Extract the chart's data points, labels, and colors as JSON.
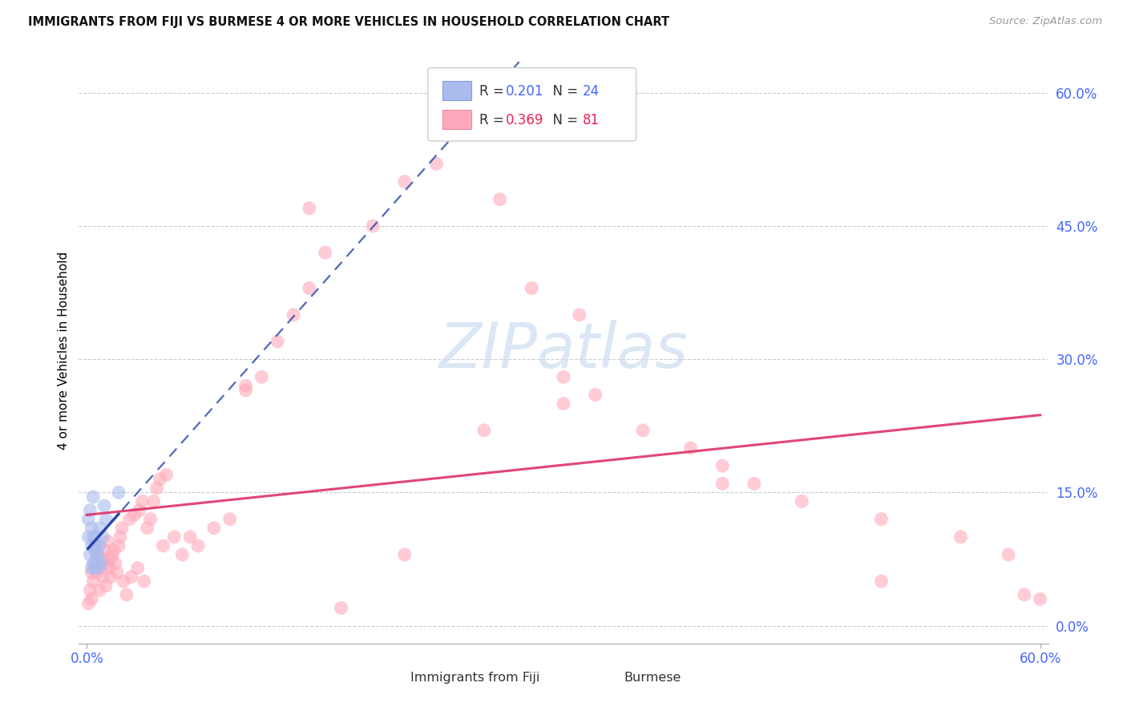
{
  "title": "IMMIGRANTS FROM FIJI VS BURMESE 4 OR MORE VEHICLES IN HOUSEHOLD CORRELATION CHART",
  "source": "Source: ZipAtlas.com",
  "ylabel": "4 or more Vehicles in Household",
  "fiji_color": "#aabbee",
  "fiji_edge_color": "#aabbee",
  "burmese_color": "#ffaabc",
  "burmese_edge_color": "#ffaabc",
  "fiji_line_color": "#2244aa",
  "burmese_line_color": "#dd3366",
  "fiji_R": "0.201",
  "fiji_N": "24",
  "burmese_R": "0.369",
  "burmese_N": "81",
  "r_color_blue": "#4466ff",
  "r_color_pink": "#ee2255",
  "watermark_color": "#ccddf0",
  "grid_color": "#cccccc",
  "x_min": 0.0,
  "x_max": 0.6,
  "y_min": -0.02,
  "y_max": 0.64,
  "x_tick_vals": [
    0.0,
    0.6
  ],
  "x_tick_labels": [
    "0.0%",
    "60.0%"
  ],
  "y_tick_vals": [
    0.0,
    0.15,
    0.3,
    0.45,
    0.6
  ],
  "y_tick_labels": [
    "0.0%",
    "15.0%",
    "30.0%",
    "45.0%",
    "60.0%"
  ],
  "fiji_x": [
    0.001,
    0.001,
    0.002,
    0.002,
    0.003,
    0.003,
    0.003,
    0.004,
    0.004,
    0.004,
    0.005,
    0.005,
    0.005,
    0.006,
    0.006,
    0.007,
    0.007,
    0.008,
    0.008,
    0.009,
    0.01,
    0.011,
    0.012,
    0.02
  ],
  "fiji_y": [
    0.1,
    0.12,
    0.08,
    0.13,
    0.065,
    0.09,
    0.11,
    0.07,
    0.1,
    0.145,
    0.065,
    0.085,
    0.1,
    0.075,
    0.09,
    0.065,
    0.08,
    0.09,
    0.11,
    0.07,
    0.1,
    0.135,
    0.12,
    0.15
  ],
  "burmese_x": [
    0.001,
    0.002,
    0.003,
    0.003,
    0.004,
    0.005,
    0.005,
    0.006,
    0.007,
    0.008,
    0.009,
    0.01,
    0.01,
    0.011,
    0.012,
    0.013,
    0.013,
    0.014,
    0.015,
    0.015,
    0.016,
    0.017,
    0.018,
    0.019,
    0.02,
    0.021,
    0.022,
    0.023,
    0.025,
    0.027,
    0.028,
    0.03,
    0.032,
    0.033,
    0.035,
    0.036,
    0.038,
    0.04,
    0.042,
    0.044,
    0.046,
    0.048,
    0.05,
    0.055,
    0.06,
    0.065,
    0.07,
    0.08,
    0.09,
    0.1,
    0.11,
    0.12,
    0.13,
    0.14,
    0.15,
    0.16,
    0.18,
    0.2,
    0.22,
    0.25,
    0.28,
    0.3,
    0.32,
    0.35,
    0.38,
    0.4,
    0.42,
    0.45,
    0.5,
    0.55,
    0.58,
    0.59,
    0.6,
    0.26,
    0.31,
    0.14,
    0.1,
    0.2,
    0.3,
    0.4,
    0.5
  ],
  "burmese_y": [
    0.025,
    0.04,
    0.06,
    0.03,
    0.05,
    0.07,
    0.09,
    0.06,
    0.08,
    0.04,
    0.065,
    0.055,
    0.075,
    0.085,
    0.045,
    0.095,
    0.07,
    0.065,
    0.075,
    0.055,
    0.08,
    0.085,
    0.07,
    0.06,
    0.09,
    0.1,
    0.11,
    0.05,
    0.035,
    0.12,
    0.055,
    0.125,
    0.065,
    0.13,
    0.14,
    0.05,
    0.11,
    0.12,
    0.14,
    0.155,
    0.165,
    0.09,
    0.17,
    0.1,
    0.08,
    0.1,
    0.09,
    0.11,
    0.12,
    0.265,
    0.28,
    0.32,
    0.35,
    0.38,
    0.42,
    0.02,
    0.45,
    0.5,
    0.52,
    0.22,
    0.38,
    0.28,
    0.26,
    0.22,
    0.2,
    0.18,
    0.16,
    0.14,
    0.12,
    0.1,
    0.08,
    0.035,
    0.03,
    0.48,
    0.35,
    0.47,
    0.27,
    0.08,
    0.25,
    0.16,
    0.05
  ]
}
